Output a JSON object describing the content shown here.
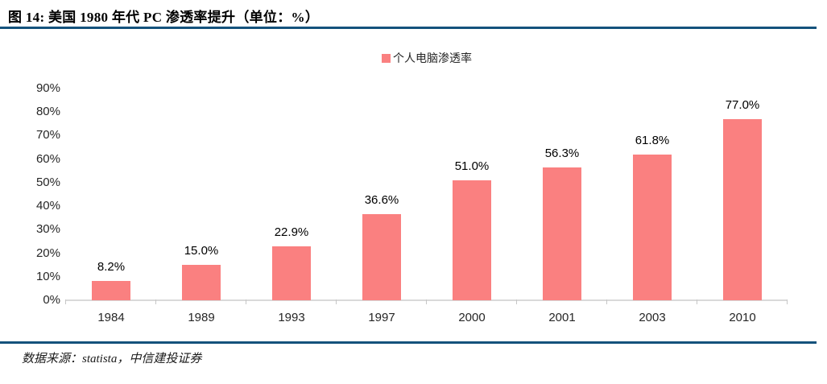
{
  "header": {
    "title": "图 14: 美国 1980 年代 PC 渗透率提升（单位：%）"
  },
  "chart_data": {
    "type": "bar",
    "title": "美国 1980 年代 PC 渗透率提升",
    "unit": "%",
    "legend": "个人电脑渗透率",
    "legend_position": "top-center",
    "categories": [
      "1984",
      "1989",
      "1993",
      "1997",
      "2000",
      "2001",
      "2003",
      "2010"
    ],
    "values": [
      8.2,
      15.0,
      22.9,
      36.6,
      51.0,
      56.3,
      61.8,
      77.0
    ],
    "data_labels": [
      "8.2%",
      "15.0%",
      "22.9%",
      "36.6%",
      "51.0%",
      "56.3%",
      "61.8%",
      "77.0%"
    ],
    "xlabel": "",
    "ylabel": "",
    "ylim": [
      0,
      90
    ],
    "ytick_step": 10,
    "ytick_labels": [
      "0%",
      "10%",
      "20%",
      "30%",
      "40%",
      "50%",
      "60%",
      "70%",
      "80%",
      "90%"
    ],
    "grid": false,
    "bar_color": "#FA8080"
  },
  "footer": {
    "source": "数据来源：statista，中信建投证券"
  },
  "colors": {
    "accent_line": "#14527C",
    "bar": "#FA8080",
    "axis_line": "#D9D9D9",
    "text": "#000000"
  }
}
